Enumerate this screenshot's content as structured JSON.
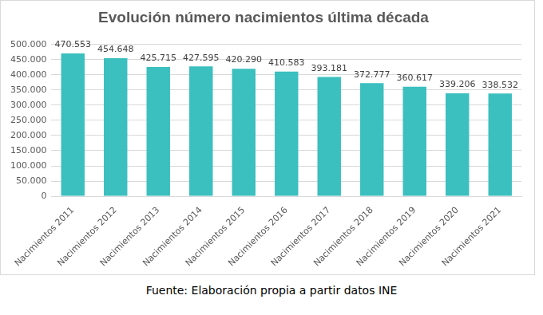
{
  "chart_data": {
    "type": "bar",
    "title": "Evolución número nacimientos última década",
    "source": "Fuente: Elaboración propia a partir datos INE",
    "categories": [
      "Nacimientos 2011",
      "Nacimientos 2012",
      "Nacimientos 2013",
      "Nacimientos 2014",
      "Nacimientos 2015",
      "Nacimientos 2016",
      "Nacimientos 2017",
      "Nacimientos 2018",
      "Nacimientos 2019",
      "Nacimientos 2020",
      "Nacimientos 2021"
    ],
    "values": [
      470553,
      454648,
      425715,
      427595,
      420290,
      410583,
      393181,
      372777,
      360617,
      339206,
      338532
    ],
    "value_labels": [
      "470.553",
      "454.648",
      "425.715",
      "427.595",
      "420.290",
      "410.583",
      "393.181",
      "372.777",
      "360.617",
      "339.206",
      "338.532"
    ],
    "data_labels": true,
    "color": "#3bbfbf",
    "ylim": [
      0,
      500000
    ],
    "yticks": [
      0,
      {
        "value": 50000,
        "label": "50.000"
      },
      {
        "value": 100000,
        "label": "100.000"
      },
      {
        "value": 150000,
        "label": "150.000"
      },
      {
        "value": 200000,
        "label": "200.000"
      },
      {
        "value": 250000,
        "label": "250.000"
      },
      {
        "value": 300000,
        "label": "300.000"
      },
      {
        "value": 350000,
        "label": "350.000"
      },
      {
        "value": 400000,
        "label": "400.000"
      },
      {
        "value": 450000,
        "label": "450.000"
      },
      {
        "value": 500000,
        "label": "500.000"
      }
    ],
    "grid": true
  }
}
